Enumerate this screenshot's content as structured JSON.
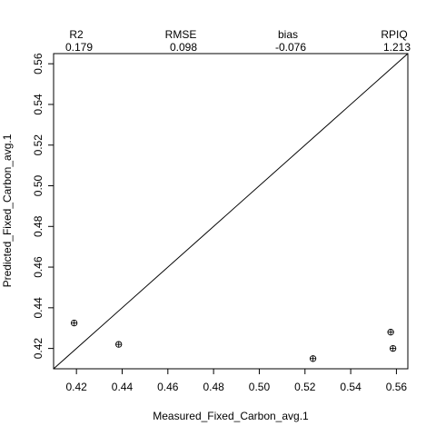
{
  "chart_data": {
    "type": "scatter",
    "xlabel": "Measured_Fixed_Carbon_avg.1",
    "ylabel": "Predicted_Fixed_Carbon_avg.1",
    "xlim": [
      0.41,
      0.565
    ],
    "ylim": [
      0.41,
      0.565
    ],
    "x_ticks": [
      0.42,
      0.44,
      0.46,
      0.48,
      0.5,
      0.52,
      0.54,
      0.56
    ],
    "y_ticks": [
      0.42,
      0.44,
      0.46,
      0.48,
      0.5,
      0.52,
      0.54,
      0.56
    ],
    "x_tick_labels": [
      "0.42",
      "0.44",
      "0.46",
      "0.48",
      "0.50",
      "0.52",
      "0.54",
      "0.56"
    ],
    "y_tick_labels": [
      "0.42",
      "0.44",
      "0.46",
      "0.48",
      "0.50",
      "0.52",
      "0.54",
      "0.56"
    ],
    "grid": false,
    "reference_line": "1:1",
    "points": [
      {
        "x": 0.419,
        "y": 0.4325
      },
      {
        "x": 0.4385,
        "y": 0.422
      },
      {
        "x": 0.5235,
        "y": 0.415
      },
      {
        "x": 0.5575,
        "y": 0.428
      },
      {
        "x": 0.5585,
        "y": 0.42
      }
    ],
    "stats": [
      {
        "label": "R2",
        "value": "0.179"
      },
      {
        "label": "RMSE",
        "value": "0.098"
      },
      {
        "label": "bias",
        "value": "-0.076"
      },
      {
        "label": "RPIQ",
        "value": "1.213"
      }
    ]
  }
}
